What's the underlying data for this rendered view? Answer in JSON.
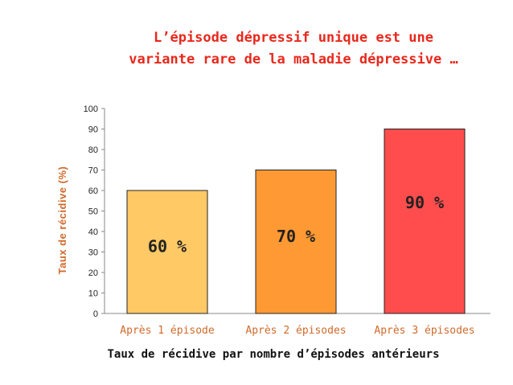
{
  "chart_data": {
    "type": "bar",
    "title": [
      "L’épisode dépressif unique est une",
      "variante rare de la maladie dépressive …"
    ],
    "xlabel": "Taux de récidive par nombre d’épisodes antérieurs",
    "ylabel": "Taux de récidive (%)",
    "ylim": [
      0,
      100
    ],
    "yticks": [
      "0",
      "10",
      "20",
      "30",
      "40",
      "50",
      "60",
      "70",
      "80",
      "90",
      "100"
    ],
    "categories": [
      "Après 1 épisode",
      "Après 2 épisodes",
      "Après 3 épisodes"
    ],
    "values": [
      60,
      70,
      90
    ],
    "data_labels": [
      "60 %",
      "70 %",
      "90 %"
    ],
    "colors": [
      "#ffc966",
      "#ff9933",
      "#ff4d4d"
    ],
    "grid": false,
    "legend": "none"
  }
}
